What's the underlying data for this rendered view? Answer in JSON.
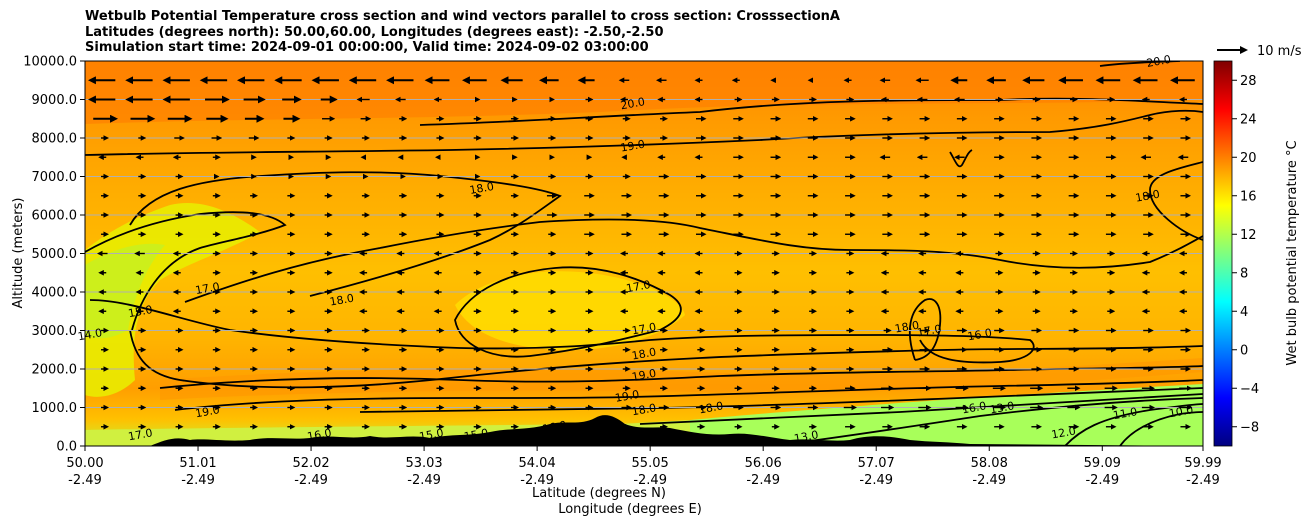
{
  "chart_data": {
    "type": "heatmap",
    "title_lines": [
      "Wetbulb Potential Temperature cross section and wind vectors parallel to cross section: CrosssectionA",
      "Latitudes (degrees north): 50.00,60.00, Longitudes (degrees east): -2.50,-2.50",
      "Simulation start time: 2024-09-01 00:00:00, Valid time: 2024-09-02 03:00:00"
    ],
    "xlabel_lines": [
      "Latitude (degrees N)",
      "Longitude (degrees E)"
    ],
    "ylabel": "Altitude (meters)",
    "x_ticks": [
      {
        "lat": "50.00",
        "lon": "-2.49"
      },
      {
        "lat": "51.01",
        "lon": "-2.49"
      },
      {
        "lat": "52.02",
        "lon": "-2.49"
      },
      {
        "lat": "53.03",
        "lon": "-2.49"
      },
      {
        "lat": "54.04",
        "lon": "-2.49"
      },
      {
        "lat": "55.05",
        "lon": "-2.49"
      },
      {
        "lat": "56.06",
        "lon": "-2.49"
      },
      {
        "lat": "57.07",
        "lon": "-2.49"
      },
      {
        "lat": "58.08",
        "lon": "-2.49"
      },
      {
        "lat": "59.09",
        "lon": "-2.49"
      },
      {
        "lat": "59.99",
        "lon": "-2.49"
      }
    ],
    "x_tick_values": [
      50.0,
      51.01,
      52.02,
      53.03,
      54.04,
      55.05,
      56.06,
      57.07,
      58.08,
      59.09,
      59.99
    ],
    "xlim": [
      50.0,
      59.99
    ],
    "y_ticks": [
      "0.0",
      "1000.0",
      "2000.0",
      "3000.0",
      "4000.0",
      "5000.0",
      "6000.0",
      "7000.0",
      "8000.0",
      "9000.0",
      "10000.0"
    ],
    "ylim": [
      0,
      10000
    ],
    "grid": "horizontal",
    "colorbar": {
      "label": "Wet bulb potential temperature $^\\circ$C",
      "label_text": "Wet bulb potential temperature °C",
      "range": [
        -10,
        30
      ],
      "ticks": [
        "−8",
        "−4",
        "0",
        "4",
        "8",
        "12",
        "16",
        "20",
        "24",
        "28"
      ],
      "tick_values": [
        -8,
        -4,
        0,
        4,
        8,
        12,
        16,
        20,
        24,
        28
      ]
    },
    "quiver_key": "10 m/s",
    "contour_labels": [
      {
        "text": "20.0",
        "lat": 54.9,
        "alt": 8800
      },
      {
        "text": "19.0",
        "lat": 54.9,
        "alt": 7700
      },
      {
        "text": "18.0",
        "lat": 53.55,
        "alt": 6600
      },
      {
        "text": "18.0",
        "lat": 59.5,
        "alt": 6400
      },
      {
        "text": "17.0",
        "lat": 54.95,
        "alt": 4050
      },
      {
        "text": "17.0",
        "lat": 51.1,
        "alt": 4000
      },
      {
        "text": "18.0",
        "lat": 52.3,
        "alt": 3700
      },
      {
        "text": "15.0",
        "lat": 50.5,
        "alt": 3400
      },
      {
        "text": "14.0",
        "lat": 50.05,
        "alt": 2800
      },
      {
        "text": "17.0",
        "lat": 55.0,
        "alt": 2950
      },
      {
        "text": "18.0",
        "lat": 55.0,
        "alt": 2300
      },
      {
        "text": "19.0",
        "lat": 55.0,
        "alt": 1750
      },
      {
        "text": "19.0",
        "lat": 54.85,
        "alt": 1200
      },
      {
        "text": "19.0",
        "lat": 51.1,
        "alt": 800
      },
      {
        "text": "18.0",
        "lat": 55.0,
        "alt": 850
      },
      {
        "text": "18.0",
        "lat": 55.6,
        "alt": 900
      },
      {
        "text": "18.0",
        "lat": 57.35,
        "alt": 3000
      },
      {
        "text": "17.0",
        "lat": 57.55,
        "alt": 2900
      },
      {
        "text": "16.0",
        "lat": 58.0,
        "alt": 2800
      },
      {
        "text": "16.0",
        "lat": 57.95,
        "alt": 900
      },
      {
        "text": "13.0",
        "lat": 58.2,
        "alt": 900
      },
      {
        "text": "13.0",
        "lat": 56.45,
        "alt": 150
      },
      {
        "text": "12.0",
        "lat": 58.75,
        "alt": 250
      },
      {
        "text": "11.0",
        "lat": 59.3,
        "alt": 750
      },
      {
        "text": "10.0",
        "lat": 59.8,
        "alt": 800
      },
      {
        "text": "17.0",
        "lat": 50.5,
        "alt": 200
      },
      {
        "text": "16.0",
        "lat": 52.1,
        "alt": 200
      },
      {
        "text": "15.0",
        "lat": 53.1,
        "alt": 200
      },
      {
        "text": "15.0",
        "lat": 53.5,
        "alt": 200
      },
      {
        "text": "16.0",
        "lat": 54.2,
        "alt": 400
      },
      {
        "text": "20.0",
        "lat": 59.6,
        "alt": 9900
      }
    ],
    "wind_rows": [
      {
        "alt": 9500,
        "dir": "left",
        "speeds": [
          9,
          9,
          9,
          9,
          9,
          9,
          9,
          9,
          9,
          8,
          8,
          7,
          6,
          5,
          3,
          3,
          2,
          2,
          1,
          1,
          2,
          3,
          4,
          5,
          6,
          7,
          8,
          8,
          8,
          8
        ]
      },
      {
        "alt": 9000,
        "dir": "mixed",
        "speeds": [
          9,
          9,
          9,
          8,
          7,
          6,
          5,
          4,
          3,
          2,
          1,
          1,
          1,
          2,
          2,
          2,
          2,
          2,
          2,
          2,
          2,
          2,
          3,
          3,
          2,
          2,
          2,
          2,
          2,
          2
        ]
      },
      {
        "alt": 8500,
        "dir": "right",
        "speeds": [
          8,
          8,
          8,
          7,
          6,
          5,
          4,
          3,
          2,
          2,
          2,
          2,
          2,
          2,
          2,
          2,
          3,
          3,
          3,
          3,
          3,
          3,
          3,
          3,
          3,
          3,
          3,
          3,
          3,
          3
        ]
      },
      {
        "alt": 8000,
        "dir": "right",
        "speeds": [
          2,
          2,
          3,
          3,
          3,
          2,
          2,
          2,
          2,
          2,
          2,
          2,
          2,
          2,
          2,
          2,
          3,
          3,
          3,
          3,
          3,
          3,
          3,
          3,
          3,
          3,
          3,
          3,
          3,
          3
        ]
      },
      {
        "alt": 7500,
        "dir": "mixed",
        "speeds": [
          2,
          2,
          2,
          2,
          1,
          1,
          1,
          1,
          1,
          1,
          1,
          1,
          1,
          1,
          1,
          2,
          2,
          3,
          3,
          3,
          3,
          3,
          3,
          3,
          3,
          3,
          3,
          3,
          3,
          3
        ]
      },
      {
        "alt": 7000,
        "dir": "right",
        "speeds": [
          2,
          2,
          2,
          1,
          1,
          1,
          1,
          1,
          1,
          1,
          1,
          2,
          2,
          2,
          2,
          3,
          3,
          3,
          3,
          3,
          3,
          3,
          3,
          3,
          3,
          3,
          3,
          3,
          3,
          3
        ]
      },
      {
        "alt": 6500,
        "dir": "right",
        "speeds": [
          2,
          2,
          2,
          2,
          2,
          2,
          2,
          2,
          2,
          2,
          2,
          2,
          3,
          3,
          3,
          3,
          3,
          3,
          3,
          3,
          3,
          3,
          3,
          3,
          3,
          3,
          3,
          3,
          3,
          3
        ]
      },
      {
        "alt": 6000,
        "dir": "right",
        "speeds": [
          2,
          2,
          2,
          2,
          2,
          2,
          2,
          2,
          2,
          2,
          2,
          2,
          3,
          3,
          3,
          3,
          3,
          3,
          3,
          3,
          3,
          3,
          3,
          3,
          3,
          3,
          3,
          3,
          3,
          3
        ]
      },
      {
        "alt": 5500,
        "dir": "right",
        "speeds": [
          2,
          2,
          2,
          2,
          2,
          2,
          2,
          2,
          2,
          2,
          2,
          2,
          2,
          3,
          3,
          3,
          3,
          3,
          3,
          3,
          3,
          3,
          3,
          3,
          3,
          3,
          3,
          3,
          3,
          3
        ]
      },
      {
        "alt": 5000,
        "dir": "mixed",
        "speeds": [
          3,
          3,
          2,
          2,
          2,
          2,
          2,
          2,
          2,
          2,
          2,
          2,
          2,
          2,
          2,
          2,
          2,
          2,
          2,
          2,
          2,
          2,
          2,
          2,
          2,
          2,
          2,
          2,
          2,
          2
        ]
      },
      {
        "alt": 4500,
        "dir": "mixed",
        "speeds": [
          2,
          2,
          2,
          2,
          2,
          2,
          2,
          2,
          2,
          2,
          2,
          2,
          2,
          2,
          2,
          2,
          2,
          2,
          2,
          2,
          2,
          2,
          2,
          2,
          2,
          2,
          2,
          2,
          2,
          2
        ]
      },
      {
        "alt": 4000,
        "dir": "mixed",
        "speeds": [
          2,
          2,
          2,
          2,
          2,
          2,
          2,
          2,
          2,
          2,
          2,
          2,
          2,
          2,
          2,
          2,
          2,
          2,
          2,
          2,
          2,
          2,
          2,
          2,
          2,
          2,
          2,
          2,
          2,
          2
        ]
      },
      {
        "alt": 3500,
        "dir": "mixed",
        "speeds": [
          2,
          2,
          2,
          2,
          2,
          2,
          2,
          2,
          2,
          2,
          2,
          2,
          2,
          2,
          2,
          2,
          2,
          2,
          2,
          2,
          2,
          2,
          2,
          2,
          2,
          2,
          2,
          2,
          2,
          2
        ]
      },
      {
        "alt": 3000,
        "dir": "right",
        "speeds": [
          2,
          2,
          2,
          2,
          2,
          2,
          2,
          2,
          2,
          2,
          2,
          2,
          2,
          2,
          2,
          2,
          2,
          2,
          2,
          2,
          2,
          2,
          3,
          3,
          3,
          3,
          3,
          3,
          3,
          3
        ]
      },
      {
        "alt": 2500,
        "dir": "right",
        "speeds": [
          2,
          2,
          2,
          2,
          2,
          2,
          2,
          2,
          2,
          2,
          2,
          2,
          2,
          2,
          2,
          2,
          2,
          2,
          2,
          2,
          2,
          3,
          3,
          3,
          3,
          3,
          3,
          3,
          3,
          3
        ]
      },
      {
        "alt": 2000,
        "dir": "right",
        "speeds": [
          2,
          2,
          2,
          2,
          2,
          2,
          2,
          2,
          2,
          2,
          2,
          2,
          2,
          2,
          2,
          2,
          2,
          2,
          2,
          2,
          2,
          3,
          3,
          3,
          3,
          3,
          3,
          3,
          3,
          3
        ]
      },
      {
        "alt": 1500,
        "dir": "right",
        "speeds": [
          2,
          2,
          2,
          2,
          2,
          2,
          2,
          2,
          2,
          2,
          2,
          2,
          2,
          2,
          2,
          2,
          2,
          2,
          2,
          2,
          3,
          4,
          4,
          4,
          4,
          4,
          4,
          4,
          4,
          4
        ]
      },
      {
        "alt": 1000,
        "dir": "right",
        "speeds": [
          2,
          2,
          2,
          2,
          2,
          2,
          2,
          2,
          2,
          2,
          2,
          2,
          2,
          2,
          3,
          3,
          3,
          3,
          3,
          3,
          4,
          4,
          4,
          4,
          4,
          4,
          4,
          4,
          4,
          4
        ]
      },
      {
        "alt": 500,
        "dir": "right",
        "speeds": [
          2,
          2,
          2,
          2,
          2,
          2,
          2,
          2,
          2,
          2,
          2,
          2,
          2,
          2,
          2,
          2,
          2,
          2,
          2,
          2,
          3,
          3,
          3,
          3,
          3,
          3,
          3,
          3,
          3,
          3
        ]
      }
    ]
  },
  "colors": {
    "field_warm": "#ff8c00",
    "field_mid": "#ffb000",
    "field_cool": "#ffd800",
    "field_low": "#a8ff5a",
    "terrain": "#000000",
    "grid": "#b0b0b0"
  }
}
